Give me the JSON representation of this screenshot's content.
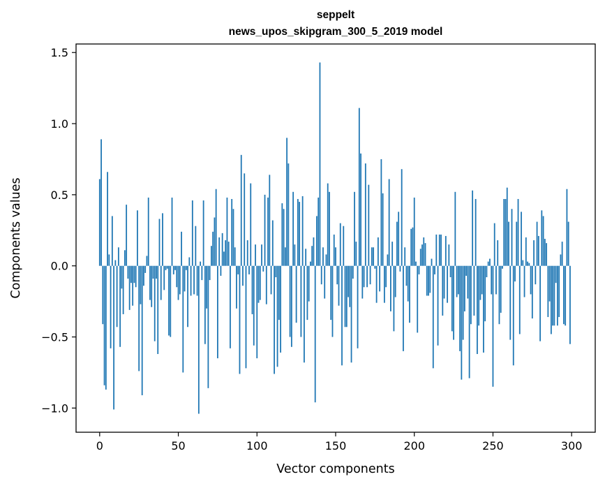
{
  "chart_data": {
    "type": "bar",
    "title": "seppelt",
    "subtitle": "news_upos_skipgram_300_5_2019 model",
    "xlabel": "Vector components",
    "ylabel": "Components values",
    "xlim": [
      -15,
      315
    ],
    "ylim": [
      -1.17,
      1.56
    ],
    "xticks": [
      0,
      50,
      100,
      150,
      200,
      250,
      300
    ],
    "xtick_labels": [
      "0",
      "50",
      "100",
      "150",
      "200",
      "250",
      "300"
    ],
    "yticks": [
      -1.0,
      -0.5,
      0.0,
      0.5,
      1.0,
      1.5
    ],
    "ytick_labels": [
      "−1.0",
      "−0.5",
      "0.0",
      "0.5",
      "1.0",
      "1.5"
    ],
    "bar_color": "#1f77b4",
    "grid": false,
    "legend": "none",
    "x": [
      0,
      1,
      2,
      3,
      4,
      5,
      6,
      7,
      8,
      9,
      10,
      11,
      12,
      13,
      14,
      15,
      16,
      17,
      18,
      19,
      20,
      21,
      22,
      23,
      24,
      25,
      26,
      27,
      28,
      29,
      30,
      31,
      32,
      33,
      34,
      35,
      36,
      37,
      38,
      39,
      40,
      41,
      42,
      43,
      44,
      45,
      46,
      47,
      48,
      49,
      50,
      51,
      52,
      53,
      54,
      55,
      56,
      57,
      58,
      59,
      60,
      61,
      62,
      63,
      64,
      65,
      66,
      67,
      68,
      69,
      70,
      71,
      72,
      73,
      74,
      75,
      76,
      77,
      78,
      79,
      80,
      81,
      82,
      83,
      84,
      85,
      86,
      87,
      88,
      89,
      90,
      91,
      92,
      93,
      94,
      95,
      96,
      97,
      98,
      99,
      100,
      101,
      102,
      103,
      104,
      105,
      106,
      107,
      108,
      109,
      110,
      111,
      112,
      113,
      114,
      115,
      116,
      117,
      118,
      119,
      120,
      121,
      122,
      123,
      124,
      125,
      126,
      127,
      128,
      129,
      130,
      131,
      132,
      133,
      134,
      135,
      136,
      137,
      138,
      139,
      140,
      141,
      142,
      143,
      144,
      145,
      146,
      147,
      148,
      149,
      150,
      151,
      152,
      153,
      154,
      155,
      156,
      157,
      158,
      159,
      160,
      161,
      162,
      163,
      164,
      165,
      166,
      167,
      168,
      169,
      170,
      171,
      172,
      173,
      174,
      175,
      176,
      177,
      178,
      179,
      180,
      181,
      182,
      183,
      184,
      185,
      186,
      187,
      188,
      189,
      190,
      191,
      192,
      193,
      194,
      195,
      196,
      197,
      198,
      199,
      200,
      201,
      202,
      203,
      204,
      205,
      206,
      207,
      208,
      209,
      210,
      211,
      212,
      213,
      214,
      215,
      216,
      217,
      218,
      219,
      220,
      221,
      222,
      223,
      224,
      225,
      226,
      227,
      228,
      229,
      230,
      231,
      232,
      233,
      234,
      235,
      236,
      237,
      238,
      239,
      240,
      241,
      242,
      243,
      244,
      245,
      246,
      247,
      248,
      249,
      250,
      251,
      252,
      253,
      254,
      255,
      256,
      257,
      258,
      259,
      260,
      261,
      262,
      263,
      264,
      265,
      266,
      267,
      268,
      269,
      270,
      271,
      272,
      273,
      274,
      275,
      276,
      277,
      278,
      279,
      280,
      281,
      282,
      283,
      284,
      285,
      286,
      287,
      288,
      289,
      290,
      291,
      292,
      293,
      294,
      295,
      296,
      297,
      298,
      299
    ],
    "values": [
      0.61,
      0.89,
      -0.41,
      -0.84,
      -0.87,
      0.66,
      0.08,
      -0.58,
      0.35,
      -1.01,
      0.04,
      -0.43,
      0.13,
      -0.57,
      -0.16,
      -0.34,
      0.11,
      0.43,
      -0.09,
      -0.31,
      -0.12,
      -0.28,
      -0.12,
      -0.15,
      0.39,
      -0.74,
      -0.27,
      -0.91,
      -0.14,
      -0.05,
      0.07,
      0.48,
      -0.24,
      -0.29,
      -0.09,
      -0.53,
      -0.09,
      -0.62,
      0.33,
      -0.24,
      0.37,
      -0.17,
      -0.03,
      -0.02,
      -0.49,
      -0.5,
      0.48,
      -0.06,
      -0.03,
      -0.15,
      -0.24,
      -0.2,
      0.24,
      -0.75,
      -0.18,
      -0.03,
      -0.43,
      0.06,
      -0.21,
      0.46,
      -0.2,
      0.28,
      -0.21,
      -1.04,
      0.03,
      -0.1,
      0.46,
      -0.55,
      -0.3,
      -0.86,
      -0.1,
      0.14,
      0.24,
      0.34,
      0.54,
      -0.65,
      0.2,
      -0.07,
      0.23,
      0.1,
      0.18,
      0.48,
      0.17,
      -0.58,
      0.47,
      0.4,
      0.13,
      -0.3,
      -0.06,
      -0.76,
      0.78,
      -0.14,
      0.65,
      -0.72,
      0.18,
      -0.06,
      0.58,
      -0.34,
      -0.56,
      0.15,
      -0.65,
      -0.26,
      -0.24,
      0.15,
      -0.04,
      0.5,
      -0.27,
      0.48,
      0.64,
      -0.2,
      0.32,
      -0.76,
      -0.08,
      -0.71,
      -0.38,
      -0.61,
      0.44,
      0.4,
      0.13,
      0.9,
      0.72,
      -0.5,
      -0.57,
      0.52,
      0.15,
      -0.4,
      0.47,
      0.45,
      -0.5,
      0.49,
      -0.68,
      0.12,
      -0.38,
      -0.25,
      0.03,
      0.14,
      0.2,
      -0.96,
      0.35,
      0.48,
      1.43,
      -0.13,
      0.13,
      -0.23,
      0.08,
      0.58,
      0.52,
      -0.38,
      -0.5,
      0.22,
      0.13,
      -0.13,
      -0.28,
      0.3,
      -0.7,
      0.28,
      -0.43,
      -0.43,
      -0.22,
      -0.29,
      -0.68,
      -0.09,
      0.52,
      0.17,
      -0.58,
      1.11,
      0.79,
      -0.23,
      -0.15,
      0.72,
      -0.15,
      0.57,
      -0.13,
      0.13,
      0.13,
      -0.02,
      -0.26,
      0.2,
      -0.18,
      0.75,
      0.51,
      -0.26,
      -0.15,
      0.08,
      0.61,
      -0.32,
      0.17,
      -0.46,
      -0.22,
      0.31,
      0.38,
      -0.04,
      0.68,
      -0.6,
      0.13,
      -0.14,
      -0.25,
      -0.4,
      0.26,
      0.27,
      0.48,
      0.03,
      -0.47,
      -0.06,
      0.12,
      0.15,
      0.2,
      0.16,
      -0.21,
      -0.21,
      -0.19,
      0.05,
      -0.72,
      -0.06,
      0.22,
      -0.56,
      0.22,
      0.22,
      -0.35,
      -0.23,
      0.21,
      -0.26,
      0.15,
      -0.08,
      -0.46,
      -0.52,
      0.52,
      -0.22,
      -0.2,
      -0.6,
      -0.8,
      -0.52,
      -0.32,
      -0.07,
      -0.23,
      -0.79,
      -0.41,
      0.53,
      -0.35,
      0.47,
      -0.62,
      -0.42,
      -0.24,
      -0.2,
      -0.61,
      -0.39,
      -0.08,
      0.03,
      0.05,
      -0.2,
      -0.85,
      0.3,
      -0.2,
      0.18,
      -0.41,
      -0.33,
      -0.02,
      0.47,
      0.47,
      0.55,
      0.31,
      -0.52,
      0.4,
      -0.7,
      -0.11,
      0.31,
      0.47,
      -0.48,
      0.38,
      0.04,
      -0.22,
      0.2,
      0.03,
      0.02,
      -0.2,
      -0.37,
      0.18,
      -0.13,
      0.31,
      0.21,
      -0.53,
      0.39,
      0.35,
      0.19,
      0.16,
      -0.36,
      -0.25,
      -0.48,
      -0.42,
      -0.42,
      -0.12,
      -0.42,
      -0.36,
      0.08,
      0.17,
      -0.41,
      -0.42,
      0.54,
      0.31,
      -0.55
    ]
  }
}
